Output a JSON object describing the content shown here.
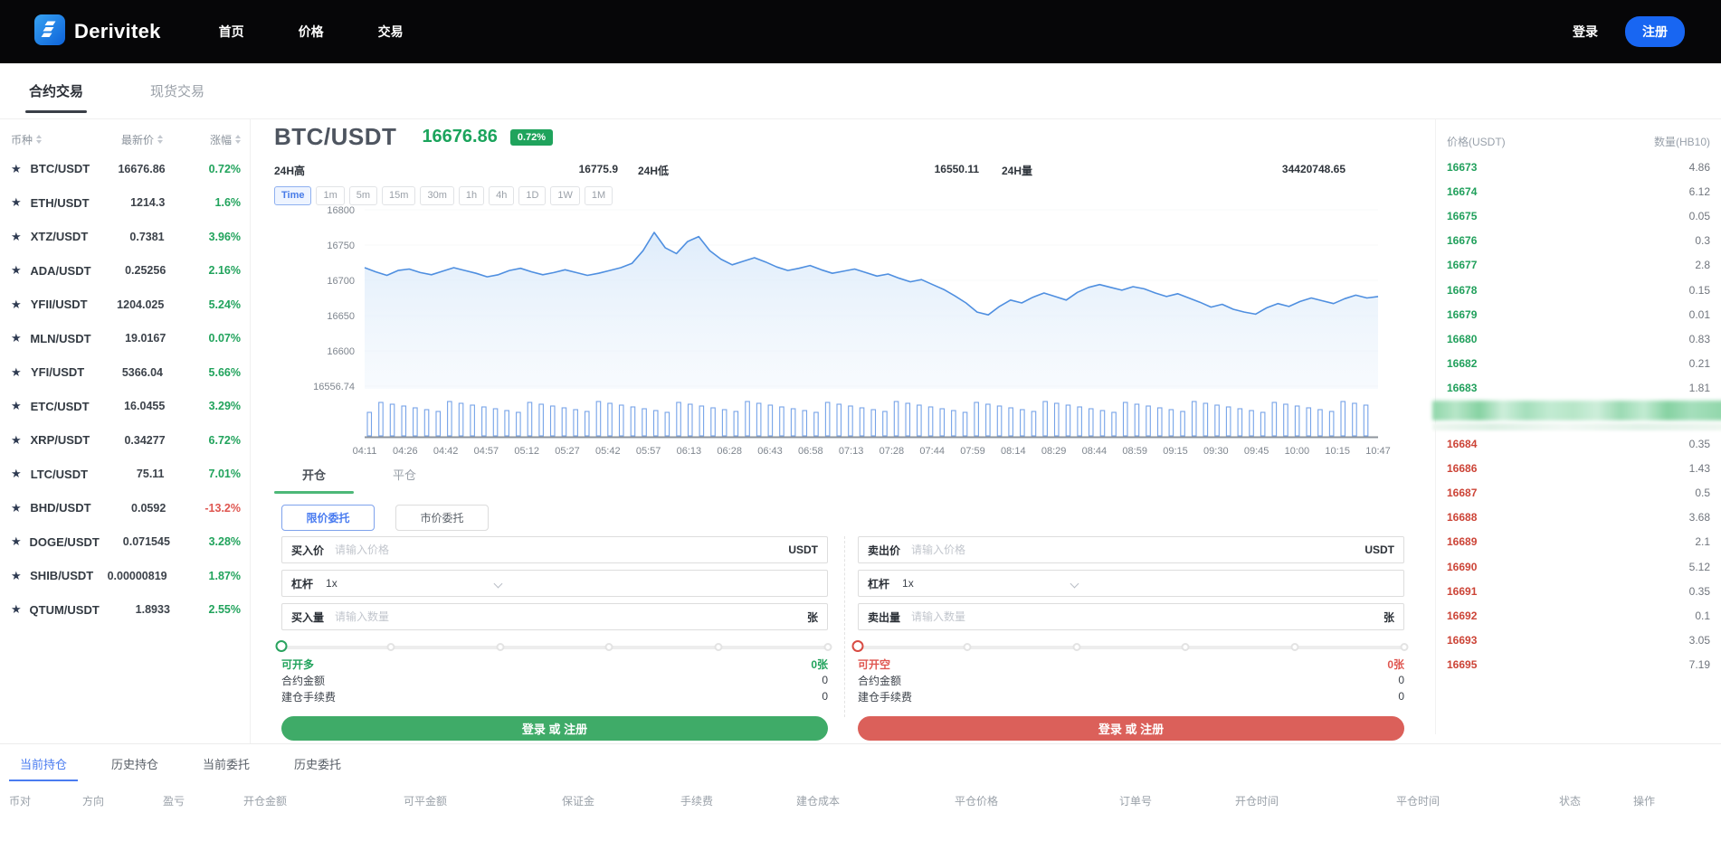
{
  "navbar": {
    "brand": "Derivitek",
    "items": [
      {
        "label": "首页"
      },
      {
        "label": "价格"
      },
      {
        "label": "交易"
      }
    ],
    "login_label": "登录",
    "register_label": "注册"
  },
  "market_tabs": {
    "contract": "合约交易",
    "spot": "现货交易"
  },
  "watchlist": {
    "headers": [
      "币种",
      "最新价",
      "涨幅"
    ],
    "rows": [
      {
        "symbol": "BTC/USDT",
        "price": "16676.86",
        "change": "0.72%",
        "dir": "up"
      },
      {
        "symbol": "ETH/USDT",
        "price": "1214.3",
        "change": "1.6%",
        "dir": "up"
      },
      {
        "symbol": "XTZ/USDT",
        "price": "0.7381",
        "change": "3.96%",
        "dir": "up"
      },
      {
        "symbol": "ADA/USDT",
        "price": "0.25256",
        "change": "2.16%",
        "dir": "up"
      },
      {
        "symbol": "YFII/USDT",
        "price": "1204.025",
        "change": "5.24%",
        "dir": "up"
      },
      {
        "symbol": "MLN/USDT",
        "price": "19.0167",
        "change": "0.07%",
        "dir": "up"
      },
      {
        "symbol": "YFI/USDT",
        "price": "5366.04",
        "change": "5.66%",
        "dir": "up"
      },
      {
        "symbol": "ETC/USDT",
        "price": "16.0455",
        "change": "3.29%",
        "dir": "up"
      },
      {
        "symbol": "XRP/USDT",
        "price": "0.34277",
        "change": "6.72%",
        "dir": "up"
      },
      {
        "symbol": "LTC/USDT",
        "price": "75.11",
        "change": "7.01%",
        "dir": "up"
      },
      {
        "symbol": "BHD/USDT",
        "price": "0.0592",
        "change": "-13.2%",
        "dir": "down"
      },
      {
        "symbol": "DOGE/USDT",
        "price": "0.071545",
        "change": "3.28%",
        "dir": "up"
      },
      {
        "symbol": "SHIB/USDT",
        "price": "0.00000819",
        "change": "1.87%",
        "dir": "up"
      },
      {
        "symbol": "QTUM/USDT",
        "price": "1.8933",
        "change": "2.55%",
        "dir": "up"
      }
    ]
  },
  "ticker": {
    "pair": "BTC/USDT",
    "last_price": "16676.86",
    "change_badge": "0.72%",
    "high_label": "24H高",
    "high_value": "16775.9",
    "low_label": "24H低",
    "low_value": "16550.11",
    "volume_label": "24H量",
    "volume_value": "34420748.65"
  },
  "intervals": {
    "active": "Time",
    "options": [
      "Time",
      "1m",
      "5m",
      "15m",
      "30m",
      "1h",
      "4h",
      "1D",
      "1W",
      "1M"
    ]
  },
  "chart_data": {
    "type": "area",
    "title": "BTC/USDT price",
    "ylim": [
      16556.74,
      16800
    ],
    "y_ticks": [
      "16800",
      "16750",
      "16700",
      "16650",
      "16600",
      "16556.74"
    ],
    "x_labels": [
      "04:11",
      "04:26",
      "04:42",
      "04:57",
      "05:12",
      "05:27",
      "05:42",
      "05:57",
      "06:13",
      "06:28",
      "06:43",
      "06:58",
      "07:13",
      "07:28",
      "07:44",
      "07:59",
      "08:14",
      "08:29",
      "08:44",
      "08:59",
      "09:15",
      "09:30",
      "09:45",
      "10:00",
      "10:15",
      "10:47"
    ],
    "line_color": "#4f8fe0",
    "series": [
      {
        "name": "BTC/USDT",
        "values": [
          16718,
          16712,
          16707,
          16714,
          16716,
          16711,
          16708,
          16713,
          16718,
          16714,
          16710,
          16705,
          16708,
          16714,
          16717,
          16712,
          16708,
          16711,
          16715,
          16711,
          16707,
          16710,
          16714,
          16718,
          16724,
          16742,
          16768,
          16746,
          16738,
          16755,
          16762,
          16742,
          16730,
          16722,
          16727,
          16732,
          16726,
          16719,
          16714,
          16717,
          16721,
          16715,
          16710,
          16713,
          16716,
          16711,
          16706,
          16709,
          16703,
          16698,
          16701,
          16694,
          16687,
          16678,
          16668,
          16655,
          16651,
          16663,
          16672,
          16668,
          16676,
          16682,
          16677,
          16672,
          16683,
          16690,
          16694,
          16690,
          16686,
          16691,
          16688,
          16682,
          16677,
          16681,
          16675,
          16669,
          16662,
          16666,
          16659,
          16655,
          16652,
          16661,
          16667,
          16663,
          16670,
          16675,
          16671,
          16667,
          16674,
          16679,
          16675,
          16677
        ]
      }
    ],
    "volume_bars": {
      "count": 88
    }
  },
  "trade_panel": {
    "position_tabs": {
      "open": "开仓",
      "close": "平仓",
      "active": "开仓"
    },
    "order_type_buttons": {
      "limit": "限价委托",
      "market": "市价委托",
      "active": "限价委托"
    },
    "buy": {
      "price_label": "买入价",
      "price_placeholder": "请输入价格",
      "price_unit": "USDT",
      "leverage_label": "杠杆",
      "leverage_value": "1x",
      "amount_label": "买入量",
      "amount_placeholder": "请输入数量",
      "amount_unit": "张",
      "available_label": "可开多",
      "available_value": "0张",
      "contract_amount_label": "合约金额",
      "contract_amount_value": "0",
      "fee_label": "建仓手续费",
      "fee_value": "0",
      "submit_label": "登录 或 注册"
    },
    "sell": {
      "price_label": "卖出价",
      "price_placeholder": "请输入价格",
      "price_unit": "USDT",
      "leverage_label": "杠杆",
      "leverage_value": "1x",
      "amount_label": "卖出量",
      "amount_placeholder": "请输入数量",
      "amount_unit": "张",
      "available_label": "可开空",
      "available_value": "0张",
      "contract_amount_label": "合约金额",
      "contract_amount_value": "0",
      "fee_label": "建仓手续费",
      "fee_value": "0",
      "submit_label": "登录 或 注册"
    }
  },
  "order_book": {
    "price_header": "价格(USDT)",
    "qty_header": "数量(HB10)",
    "buy_rows": [
      [
        "16673",
        "4.86"
      ],
      [
        "16674",
        "6.12"
      ],
      [
        "16675",
        "0.05"
      ],
      [
        "16676",
        "0.3"
      ],
      [
        "16677",
        "2.8"
      ],
      [
        "16678",
        "0.15"
      ],
      [
        "16679",
        "0.01"
      ],
      [
        "16680",
        "0.83"
      ],
      [
        "16682",
        "0.21"
      ],
      [
        "16683",
        "1.81"
      ]
    ],
    "sell_rows": [
      [
        "16684",
        "0.35"
      ],
      [
        "16686",
        "1.43"
      ],
      [
        "16687",
        "0.5"
      ],
      [
        "16688",
        "3.68"
      ],
      [
        "16689",
        "2.1"
      ],
      [
        "16690",
        "5.12"
      ],
      [
        "16691",
        "0.35"
      ],
      [
        "16692",
        "0.1"
      ],
      [
        "16693",
        "3.05"
      ],
      [
        "16695",
        "7.19"
      ]
    ]
  },
  "positions": {
    "tabs": [
      {
        "label": "当前持仓",
        "active": true
      },
      {
        "label": "历史持仓",
        "active": false
      },
      {
        "label": "当前委托",
        "active": false
      },
      {
        "label": "历史委托",
        "active": false
      }
    ],
    "table_headers": [
      "币对",
      "方向",
      "盈亏",
      "开仓金额",
      "可平金额",
      "保证金",
      "手续费",
      "建仓成本",
      "平仓价格",
      "订单号",
      "开仓时间",
      "平仓时间",
      "状态",
      "操作"
    ]
  },
  "colors": {
    "up_green": "#21a35c",
    "down_red": "#df5650",
    "accent_blue": "#4a7cf0",
    "register_blue": "#1866f2",
    "buy_button_green": "#3fab68",
    "sell_button_red": "#db605a"
  }
}
